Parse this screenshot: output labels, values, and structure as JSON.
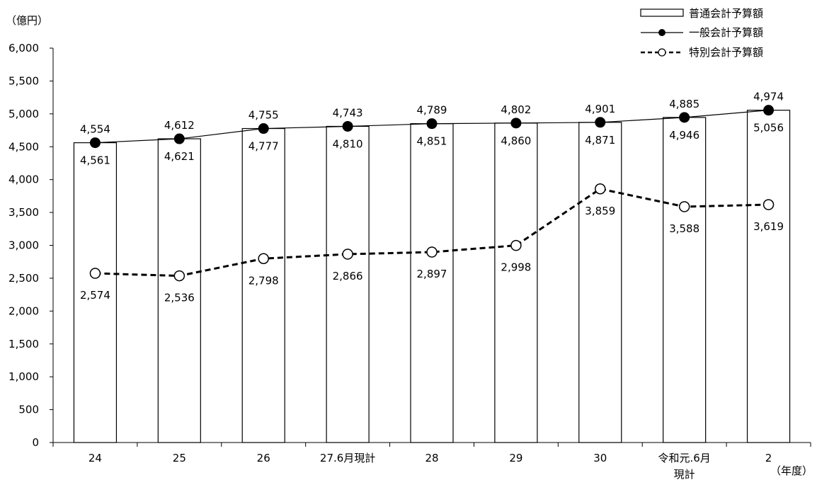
{
  "chart_data": {
    "type": "bar",
    "unit_label": "（億円）",
    "x_unit_label": "（年度）",
    "categories": [
      "24",
      "25",
      "26",
      "27.6月現計",
      "28",
      "29",
      "30",
      "令和元.6月\n現計",
      "2"
    ],
    "series": [
      {
        "name": "普通会計予算額",
        "kind": "bar",
        "values": [
          4561,
          4621,
          4777,
          4810,
          4851,
          4860,
          4871,
          4946,
          5056
        ],
        "value_labels": [
          "4,561",
          "4,621",
          "4,777",
          "4,810",
          "4,851",
          "4,860",
          "4,871",
          "4,946",
          "5,056"
        ]
      },
      {
        "name": "一般会計予算額",
        "kind": "line-solid-filled-marker",
        "values": [
          4554,
          4612,
          4755,
          4743,
          4789,
          4802,
          4901,
          4885,
          4974
        ],
        "value_labels": [
          "4,554",
          "4,612",
          "4,755",
          "4,743",
          "4,789",
          "4,802",
          "4,901",
          "4,885",
          "4,974"
        ]
      },
      {
        "name": "特別会計予算額",
        "kind": "line-dashed-open-marker",
        "values": [
          2574,
          2536,
          2798,
          2866,
          2897,
          2998,
          3859,
          3588,
          3619
        ],
        "value_labels": [
          "2,574",
          "2,536",
          "2,798",
          "2,866",
          "2,897",
          "2,998",
          "3,859",
          "3,588",
          "3,619"
        ]
      }
    ],
    "ylim": [
      0,
      6000
    ],
    "yticks": [
      0,
      500,
      1000,
      1500,
      2000,
      2500,
      3000,
      3500,
      4000,
      4500,
      5000,
      5500,
      6000
    ],
    "ytick_labels": [
      "0",
      "500",
      "1,000",
      "1,500",
      "2,000",
      "2,500",
      "3,000",
      "3,500",
      "4,000",
      "4,500",
      "5,000",
      "5,500",
      "6,000"
    ],
    "grid": false,
    "legend_position": "top-right"
  }
}
